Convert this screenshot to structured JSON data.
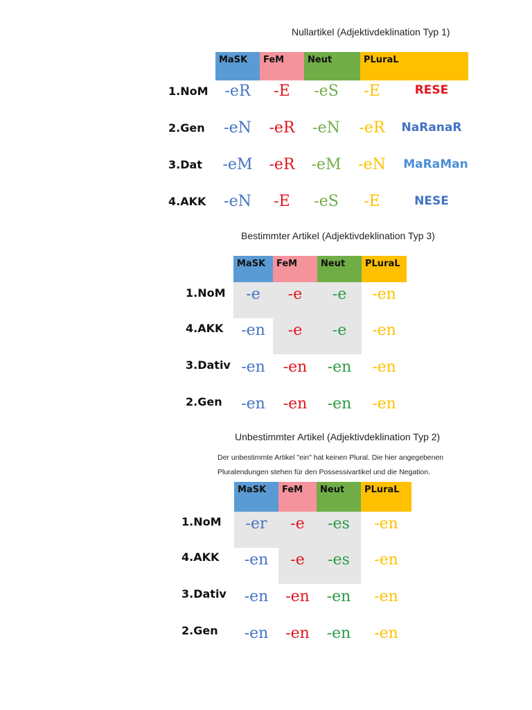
{
  "colors": {
    "mask": "#5b9bd5",
    "fem": "#f4939b",
    "neut": "#70ad47",
    "plural": "#ffc000",
    "shade": "#e6e6e6"
  },
  "headers": {
    "mask": "MaSK",
    "fem": "FeM",
    "neut": "Neut",
    "plural": "PLuraL"
  },
  "null_section": {
    "title": "Nullartikel (Adjektivdeklination Typ 1)",
    "rows": [
      {
        "label": "1.NoM",
        "m": "-eR",
        "f": "-E",
        "n": "-eS",
        "p": "-E",
        "mnemonic": "RESE"
      },
      {
        "label": "2.Gen",
        "m": "-eN",
        "f": "-eR",
        "n": "-eN",
        "p": "-eR",
        "mnemonic": "NaRanaR"
      },
      {
        "label": "3.Dat",
        "m": "-eM",
        "f": "-eR",
        "n": "-eM",
        "p": "-eN",
        "mnemonic": "MaRaMan"
      },
      {
        "label": "4.AKK",
        "m": "-eN",
        "f": "-E",
        "n": "-eS",
        "p": "-E",
        "mnemonic": "NESE"
      }
    ]
  },
  "def_section": {
    "title": "Bestimmter Artikel (Adjektivdeklination Typ 3)",
    "rows": [
      {
        "label": "1.NoM",
        "m": "-e",
        "f": "-e",
        "n": "-e",
        "p": "-en"
      },
      {
        "label": "4.AKK",
        "m": "-en",
        "f": "-e",
        "n": "-e",
        "p": "-en"
      },
      {
        "label": "3.Dativ",
        "m": "-en",
        "f": "-en",
        "n": "-en",
        "p": "-en"
      },
      {
        "label": "2.Gen",
        "m": "-en",
        "f": "-en",
        "n": "-en",
        "p": "-en"
      }
    ]
  },
  "indef_section": {
    "title": "Unbestimmter Artikel (Adjektivdeklination Typ 2)",
    "note_line1": "Der unbestimmte Artikel \"ein\" hat keinen Plural. Die hier angegebenen",
    "note_line2": "Pluralendungen stehen für den Possessivartikel und die Negation.",
    "rows": [
      {
        "label": "1.NoM",
        "m": "-er",
        "f": "-e",
        "n": "-es",
        "p": "-en"
      },
      {
        "label": "4.AKK",
        "m": "-en",
        "f": "-e",
        "n": "-es",
        "p": "-en"
      },
      {
        "label": "3.Dativ",
        "m": "-en",
        "f": "-en",
        "n": "-en",
        "p": "-en"
      },
      {
        "label": "2.Gen",
        "m": "-en",
        "f": "-en",
        "n": "-en",
        "p": "-en"
      }
    ]
  }
}
